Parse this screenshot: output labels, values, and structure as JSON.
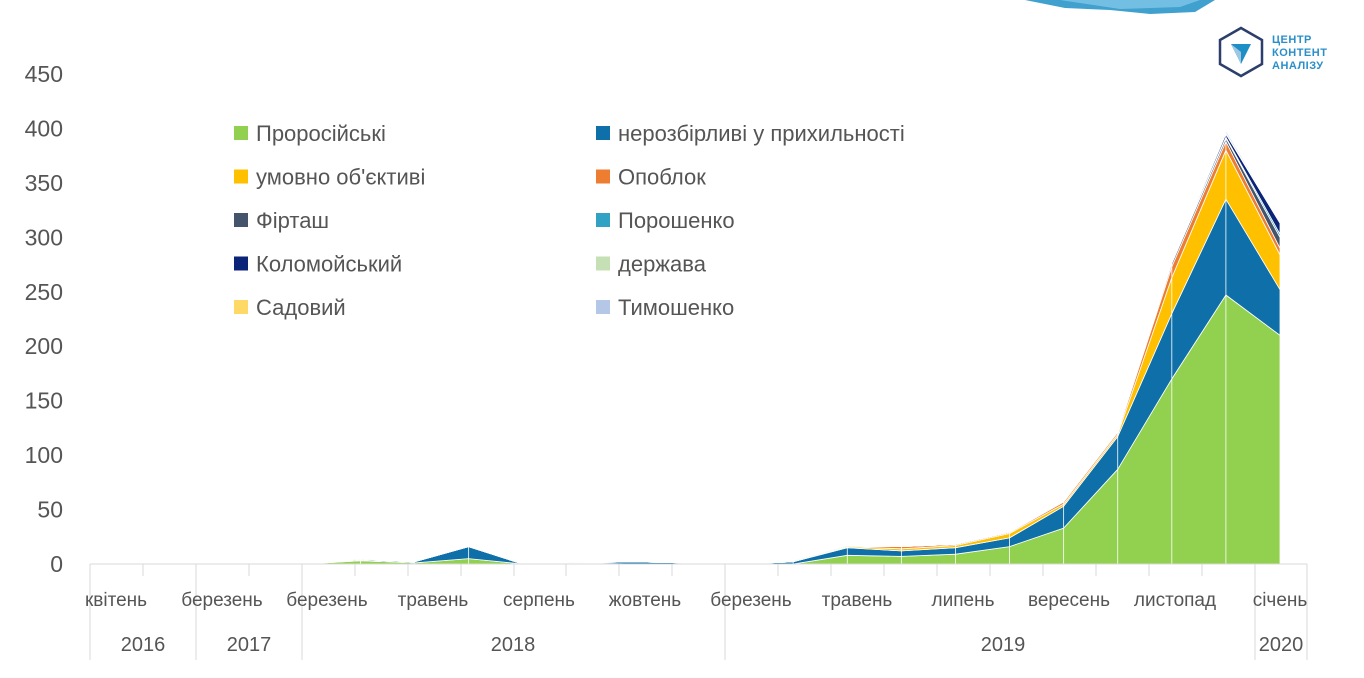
{
  "chart_data": {
    "type": "area",
    "stacked": true,
    "ylim": [
      0,
      450
    ],
    "yticks": [
      0,
      50,
      100,
      150,
      200,
      250,
      300,
      350,
      400,
      450
    ],
    "month_labels": [
      "квітень",
      "березень",
      "березень",
      "травень",
      "серпень",
      "жовтень",
      "березень",
      "травень",
      "липень",
      "вересень",
      "листопад",
      "січень"
    ],
    "year_labels": [
      "2016",
      "2017",
      "2018",
      "2019",
      "2020"
    ],
    "n_points": 23,
    "series": [
      {
        "name": "Проросійські",
        "color": "#92d050",
        "values": [
          0,
          0,
          0,
          0,
          0,
          3,
          1,
          5,
          0,
          1,
          0,
          0,
          0,
          0,
          8,
          7,
          9,
          16,
          33,
          87,
          170,
          247,
          210
        ]
      },
      {
        "name": "нерозбірливі у прихильності",
        "color": "#0f6fa8",
        "values": [
          0,
          0,
          0,
          0,
          0,
          1,
          1,
          11,
          0,
          0,
          2,
          1,
          0,
          2,
          7,
          5,
          6,
          8,
          20,
          30,
          60,
          88,
          42
        ]
      },
      {
        "name": "умовно об'єктиві",
        "color": "#ffc000",
        "values": [
          0,
          0,
          0,
          0,
          0,
          0,
          0,
          0,
          0,
          0,
          0,
          0,
          0,
          0,
          1,
          2,
          2,
          4,
          2,
          2,
          33,
          45,
          32
        ]
      },
      {
        "name": "Опоблок",
        "color": "#ed7d31",
        "values": [
          0,
          0,
          0,
          0,
          0,
          0,
          0,
          0,
          0,
          0,
          0,
          0,
          0,
          0,
          0,
          2,
          1,
          1,
          2,
          2,
          10,
          8,
          6
        ]
      },
      {
        "name": "Фірташ",
        "color": "#44546a",
        "values": [
          0,
          0,
          0,
          0,
          0,
          0,
          0,
          0,
          0,
          0,
          0,
          0,
          0,
          0,
          0,
          0,
          0,
          0,
          0,
          1,
          3,
          3,
          10
        ]
      },
      {
        "name": "Порошенко",
        "color": "#31a2c4",
        "values": [
          0,
          0,
          0,
          0,
          0,
          0,
          0,
          0,
          0,
          0,
          0,
          0,
          0,
          0,
          0,
          0,
          0,
          0,
          0,
          0,
          1,
          1,
          3
        ]
      },
      {
        "name": "Коломойський",
        "color": "#0b2478",
        "values": [
          0,
          0,
          0,
          0,
          0,
          0,
          0,
          0,
          0,
          0,
          0,
          0,
          0,
          0,
          0,
          0,
          0,
          0,
          0,
          0,
          1,
          3,
          10
        ]
      },
      {
        "name": "держава",
        "color": "#c5e0b4",
        "values": [
          0,
          0,
          0,
          0,
          0,
          1,
          0,
          0,
          0,
          1,
          0,
          0,
          0,
          1,
          1,
          0,
          0,
          0,
          1,
          1,
          1,
          1,
          1
        ]
      },
      {
        "name": "Садовий",
        "color": "#ffd966",
        "values": [
          0,
          0,
          0,
          0,
          0,
          0,
          0,
          0,
          0,
          0,
          0,
          0,
          0,
          0,
          0,
          0,
          0,
          1,
          0,
          0,
          0,
          0,
          0
        ]
      },
      {
        "name": "Тимошенко",
        "color": "#b4c7e7",
        "values": [
          0,
          0,
          0,
          0,
          0,
          0,
          0,
          0,
          0,
          0,
          0,
          0,
          0,
          0,
          0,
          0,
          0,
          0,
          0,
          0,
          1,
          2,
          1
        ]
      }
    ],
    "legend": "top-left, two columns"
  },
  "logo": {
    "line1": "ЦЕНТР",
    "line2": "КОНТЕНТ",
    "line3": "АНАЛІЗУ"
  }
}
